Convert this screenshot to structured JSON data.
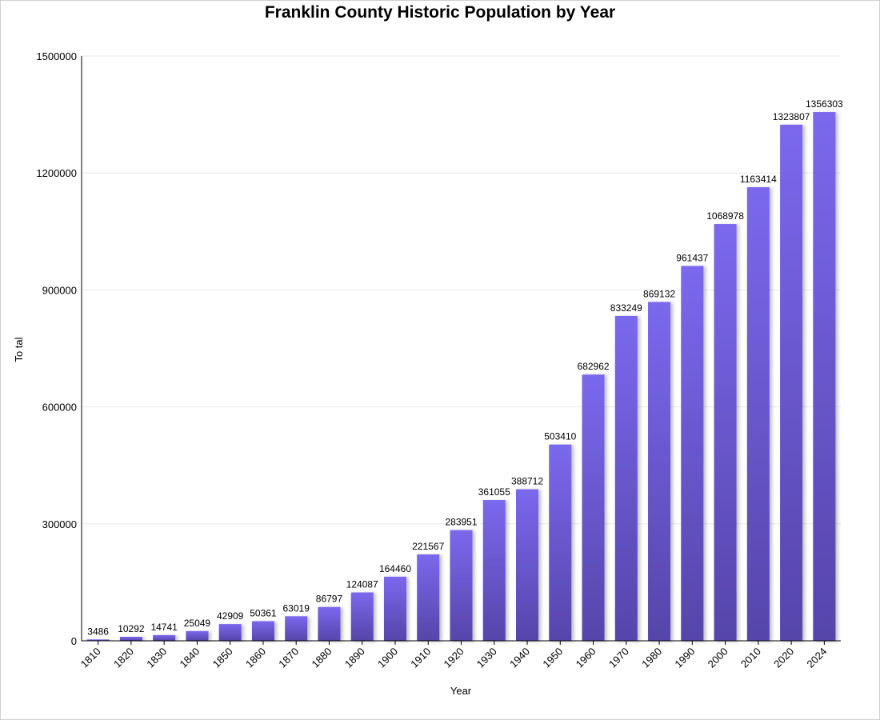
{
  "chart_data": {
    "type": "bar",
    "title": "Franklin County Historic Population by Year",
    "xlabel": "Year",
    "ylabel": "To tal",
    "ylim": [
      0,
      1500000
    ],
    "yticks": [
      "0",
      "300000",
      "600000",
      "900000",
      "1200000",
      "1500000"
    ],
    "grid": true,
    "categories": [
      "1810",
      "1820",
      "1830",
      "1840",
      "1850",
      "1860",
      "1870",
      "1880",
      "1890",
      "1900",
      "1910",
      "1920",
      "1930",
      "1940",
      "1950",
      "1960",
      "1970",
      "1980",
      "1990",
      "2000",
      "2010",
      "2020",
      "2024"
    ],
    "values": [
      3486,
      10292,
      14741,
      25049,
      42909,
      50361,
      63019,
      86797,
      124087,
      164460,
      221567,
      283951,
      361055,
      388712,
      503410,
      682962,
      833249,
      869132,
      961437,
      1068978,
      1163414,
      1323807,
      1356303
    ],
    "colors": {
      "bar_top": "#7b68ee",
      "bar_bottom": "#5645aa",
      "grid": "#e8e8e8",
      "axis": "#000000"
    }
  }
}
